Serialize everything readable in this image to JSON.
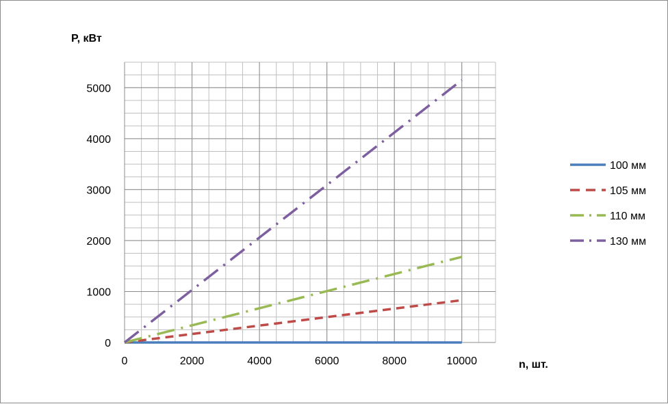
{
  "chart_data": {
    "type": "line",
    "xlabel": "n, шт.",
    "ylabel": "P, кВт",
    "xlim": [
      0,
      11000
    ],
    "ylim": [
      0,
      5500
    ],
    "x_ticks": [
      0,
      2000,
      4000,
      6000,
      8000,
      10000
    ],
    "y_ticks": [
      0,
      1000,
      2000,
      3000,
      4000,
      5000
    ],
    "x_minor_step": 500,
    "y_minor_step": 250,
    "grid": true,
    "legend_position": "right",
    "series": [
      {
        "name": "100 мм",
        "color": "#4a7ebb",
        "dash": "solid",
        "x": [
          0,
          10000
        ],
        "y": [
          0,
          0
        ]
      },
      {
        "name": "105 мм",
        "color": "#be4b48",
        "dash": "dash",
        "x": [
          0,
          10000
        ],
        "y": [
          0,
          830
        ]
      },
      {
        "name": "110 мм",
        "color": "#98b954",
        "dash": "longdashdot",
        "x": [
          0,
          10000
        ],
        "y": [
          0,
          1680
        ]
      },
      {
        "name": "130 мм",
        "color": "#7d5fa0",
        "dash": "longdashdot",
        "x": [
          0,
          10000
        ],
        "y": [
          0,
          5150
        ]
      }
    ]
  }
}
